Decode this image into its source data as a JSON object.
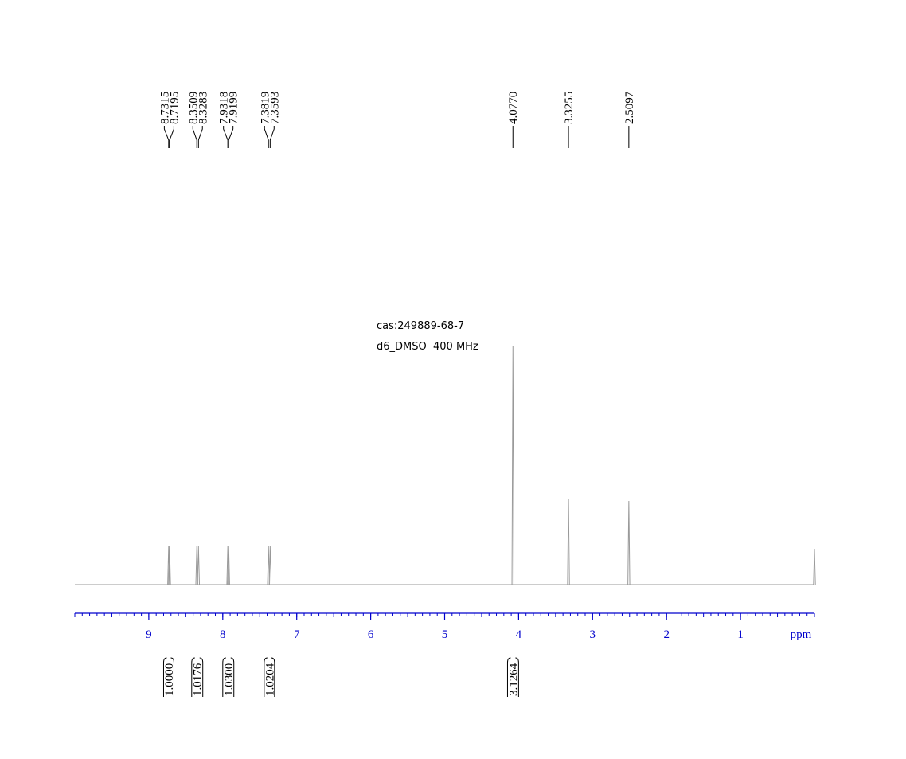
{
  "chart_data": {
    "type": "spectrum",
    "annotations": [
      "cas:249889-68-7",
      "d6_DMSO  400 MHz"
    ],
    "x_label": "ppm",
    "xlim": [
      10,
      0
    ],
    "xticks": [
      9,
      8,
      7,
      6,
      5,
      4,
      3,
      2,
      1
    ],
    "ylim": [
      0,
      100
    ],
    "color": "#999999",
    "axis_color": "#0000cc",
    "peaks": {
      "x": [
        8.7315,
        8.7195,
        8.3509,
        8.3283,
        7.9318,
        7.9199,
        7.3819,
        7.3593,
        4.077,
        3.3255,
        2.5097,
        0
      ],
      "values": [
        16,
        16,
        16,
        16,
        16,
        16,
        16,
        16,
        100,
        36,
        35,
        15
      ]
    },
    "peak_labels": [
      {
        "value": 8.7315,
        "label": "8.7315"
      },
      {
        "value": 8.7195,
        "label": "8.7195"
      },
      {
        "value": 8.3509,
        "label": "8.3509"
      },
      {
        "value": 8.3283,
        "label": "8.3283"
      },
      {
        "value": 7.9318,
        "label": "7.9318"
      },
      {
        "value": 7.9199,
        "label": "7.9199"
      },
      {
        "value": 7.3819,
        "label": "7.3819"
      },
      {
        "value": 7.3593,
        "label": "7.3593"
      },
      {
        "value": 4.077,
        "label": "4.0770"
      },
      {
        "value": 3.3255,
        "label": "3.3255"
      },
      {
        "value": 2.5097,
        "label": "2.5097"
      }
    ],
    "integrals": {
      "values": [
        1,
        1.0176,
        1.03,
        1.0204,
        3.1264
      ],
      "value_labels": [
        "1.0000",
        "1.0176",
        "1.0300",
        "1.0204",
        "3.1264"
      ],
      "ranges": [
        [
          8.8,
          8.66
        ],
        [
          8.42,
          8.27
        ],
        [
          8.0,
          7.85
        ],
        [
          7.44,
          7.3
        ],
        [
          4.15,
          4.0
        ]
      ]
    }
  }
}
